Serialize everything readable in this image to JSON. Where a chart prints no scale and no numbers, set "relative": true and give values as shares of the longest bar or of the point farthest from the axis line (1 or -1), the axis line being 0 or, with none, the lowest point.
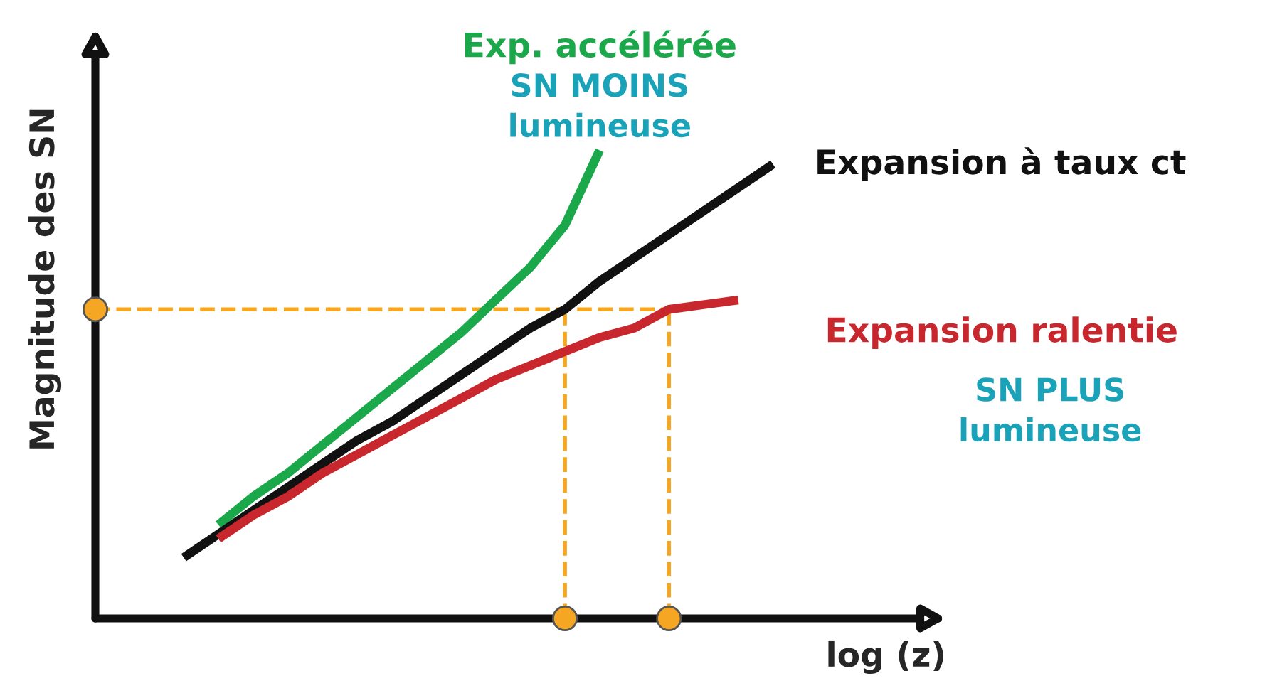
{
  "chart_data": {
    "type": "line",
    "relative": true,
    "xlabel": "log (z)",
    "ylabel": "Magnitude des SN",
    "categories": [
      null,
      null,
      null,
      null,
      null,
      null,
      null,
      null,
      null,
      null,
      null,
      null,
      null,
      null,
      null,
      null,
      null,
      null
    ],
    "series": [
      {
        "name": "Exp. accélérée",
        "color": "#1ba84a",
        "values": [
          null,
          0.2,
          0.26,
          0.31,
          0.37,
          0.43,
          0.49,
          0.55,
          0.61,
          0.68,
          0.75,
          0.84,
          1.0,
          null,
          null,
          null,
          null,
          null
        ]
      },
      {
        "name": "Expansion à taux ct",
        "color": "#111111",
        "values": [
          0.13,
          0.18,
          0.23,
          0.28,
          0.33,
          0.38,
          0.42,
          0.47,
          0.52,
          0.57,
          0.62,
          0.66,
          0.72,
          0.77,
          0.82,
          0.87,
          0.92,
          0.97
        ]
      },
      {
        "name": "Expansion ralentie",
        "color": "#c8282d",
        "values": [
          null,
          0.17,
          0.22,
          0.26,
          0.31,
          0.35,
          0.39,
          0.43,
          0.47,
          0.51,
          0.54,
          0.57,
          0.6,
          0.62,
          0.66,
          0.67,
          0.68,
          null
        ]
      }
    ],
    "ref_lines": [
      {
        "axis": "y",
        "value": 0.66,
        "color": "#f5a623",
        "line_style": "dashed"
      }
    ],
    "annotations": [
      "SN MOINS\nlumineuse",
      "SN PLUS\nlumineuse"
    ],
    "grid": false,
    "marker": "none",
    "line_style": "solid"
  }
}
